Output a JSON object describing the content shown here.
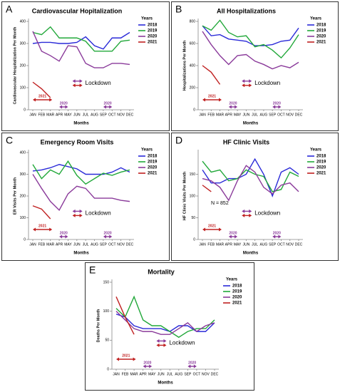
{
  "chart_data": [
    {
      "type": "line",
      "panel": "A",
      "title": "Cardiovascular Hopitalization",
      "y_label": "Cardiovascular Hospitalization Per Month",
      "x_label": "Months",
      "legend_title": "Years",
      "categories": [
        "JAN",
        "FEB",
        "MAR",
        "APR",
        "MAY",
        "JUN",
        "JUL",
        "AUG",
        "SEP",
        "OCT",
        "NOV",
        "DEC"
      ],
      "ylim": [
        0,
        400
      ],
      "yticks": [
        0,
        100,
        200,
        300,
        400
      ],
      "series": [
        {
          "name": "2018",
          "color": "#2a2ad8",
          "values": [
            300,
            305,
            305,
            300,
            300,
            305,
            330,
            290,
            275,
            325,
            325,
            350
          ]
        },
        {
          "name": "2019",
          "color": "#22a83a",
          "values": [
            350,
            340,
            375,
            325,
            325,
            325,
            310,
            265,
            265,
            265,
            310,
            315
          ]
        },
        {
          "name": "2020",
          "color": "#8a3a9a",
          "values": [
            355,
            265,
            245,
            220,
            290,
            285,
            210,
            190,
            190,
            210,
            210,
            205
          ]
        },
        {
          "name": "2021",
          "color": "#c02020",
          "values": [
            125,
            95,
            55,
            null,
            null,
            null,
            null,
            null,
            null,
            null,
            null,
            null
          ]
        }
      ],
      "annotations": [
        "Lockdown",
        "2021",
        "2020",
        "2020"
      ]
    },
    {
      "type": "line",
      "panel": "B",
      "title": "All Hospitalizations",
      "y_label": "Hospitalizations Per Month",
      "x_label": "Months",
      "legend_title": "Years",
      "categories": [
        "JAN",
        "FEB",
        "MAR",
        "APR",
        "MAY",
        "JUN",
        "JUL",
        "AUG",
        "SEP",
        "OCT",
        "NOV",
        "DEC"
      ],
      "ylim": [
        0,
        800
      ],
      "yticks": [
        0,
        200,
        400,
        600,
        800
      ],
      "series": [
        {
          "name": "2018",
          "color": "#2a2ad8",
          "values": [
            760,
            670,
            680,
            640,
            630,
            620,
            580,
            580,
            590,
            620,
            630,
            740
          ]
        },
        {
          "name": "2019",
          "color": "#22a83a",
          "values": [
            760,
            720,
            810,
            700,
            660,
            670,
            570,
            590,
            540,
            470,
            560,
            680
          ]
        },
        {
          "name": "2020",
          "color": "#8a3a9a",
          "values": [
            710,
            590,
            490,
            410,
            490,
            500,
            440,
            410,
            370,
            400,
            380,
            430
          ]
        },
        {
          "name": "2021",
          "color": "#c02020",
          "values": [
            400,
            340,
            230,
            null,
            null,
            null,
            null,
            null,
            null,
            null,
            null,
            null
          ]
        }
      ],
      "annotations": [
        "Lockdown",
        "2021",
        "2020",
        "2020"
      ]
    },
    {
      "type": "line",
      "panel": "C",
      "title": "Emergency Room Visits",
      "y_label": "ER Visits Per Month",
      "x_label": "Months",
      "legend_title": "Years",
      "categories": [
        "JAN",
        "FEB",
        "MAR",
        "APR",
        "MAY",
        "JUN",
        "JUL",
        "AUG",
        "SEP",
        "OCT",
        "NOV",
        "DEC"
      ],
      "ylim": [
        0,
        400
      ],
      "yticks": [
        0,
        100,
        200,
        300,
        400
      ],
      "series": [
        {
          "name": "2018",
          "color": "#2a2ad8",
          "values": [
            315,
            320,
            330,
            345,
            335,
            325,
            300,
            300,
            300,
            310,
            330,
            310
          ]
        },
        {
          "name": "2019",
          "color": "#22a83a",
          "values": [
            345,
            280,
            320,
            300,
            360,
            295,
            255,
            280,
            305,
            295,
            310,
            320
          ]
        },
        {
          "name": "2020",
          "color": "#8a3a9a",
          "values": [
            300,
            235,
            175,
            135,
            210,
            245,
            235,
            190,
            190,
            190,
            180,
            175
          ]
        },
        {
          "name": "2021",
          "color": "#c02020",
          "values": [
            155,
            140,
            95,
            null,
            null,
            null,
            null,
            null,
            null,
            null,
            null,
            null
          ]
        }
      ],
      "annotations": [
        "Lockdown",
        "2021",
        "2020",
        "2020"
      ]
    },
    {
      "type": "line",
      "panel": "D",
      "title": "HF Clinic Visits",
      "y_label": "HF Clinic Visits Per Month",
      "x_label": "Months",
      "legend_title": "Years",
      "categories": [
        "JAN",
        "FEB",
        "MAR",
        "APR",
        "MAY",
        "JUN",
        "JUL",
        "AUG",
        "SEP",
        "OCT",
        "NOV",
        "DEC"
      ],
      "ylim": [
        0,
        200
      ],
      "yticks": [
        0,
        50,
        100,
        150
      ],
      "series": [
        {
          "name": "2018",
          "color": "#2a2ad8",
          "values": [
            160,
            130,
            130,
            140,
            140,
            150,
            185,
            150,
            100,
            155,
            165,
            150
          ]
        },
        {
          "name": "2019",
          "color": "#22a83a",
          "values": [
            180,
            155,
            160,
            135,
            140,
            160,
            150,
            145,
            110,
            115,
            155,
            145
          ]
        },
        {
          "name": "2020",
          "color": "#8a3a9a",
          "values": [
            140,
            135,
            120,
            90,
            135,
            170,
            155,
            120,
            105,
            125,
            130,
            110
          ]
        },
        {
          "name": "2021",
          "color": "#c02020",
          "values": [
            125,
            110,
            null,
            null,
            null,
            null,
            null,
            null,
            null,
            null,
            null,
            null
          ]
        }
      ],
      "note": "N = 852",
      "annotations": [
        "Lockdown",
        "2021",
        "2020",
        "2020"
      ]
    },
    {
      "type": "line",
      "panel": "E",
      "title": "Mortality",
      "y_label": "Deaths Per Month",
      "x_label": "Months",
      "legend_title": "Years",
      "categories": [
        "JAN",
        "FEB",
        "MAR",
        "APR",
        "MAY",
        "JUN",
        "JUL",
        "AUG",
        "SEP",
        "OCT",
        "NOV",
        "DEC"
      ],
      "ylim": [
        0,
        150
      ],
      "yticks": [
        0,
        50,
        100,
        150
      ],
      "series": [
        {
          "name": "2018",
          "color": "#2a2ad8",
          "values": [
            95,
            90,
            75,
            70,
            70,
            70,
            65,
            75,
            75,
            65,
            65,
            80
          ]
        },
        {
          "name": "2019",
          "color": "#22a83a",
          "values": [
            105,
            90,
            125,
            85,
            75,
            75,
            65,
            55,
            65,
            70,
            70,
            85
          ]
        },
        {
          "name": "2020",
          "color": "#8a3a9a",
          "values": [
            100,
            85,
            70,
            65,
            65,
            60,
            60,
            70,
            80,
            65,
            75,
            80
          ]
        },
        {
          "name": "2021",
          "color": "#c02020",
          "values": [
            125,
            90,
            60,
            null,
            null,
            null,
            null,
            null,
            null,
            null,
            null,
            null
          ]
        }
      ],
      "annotations": [
        "Lockdown",
        "2021",
        "2020",
        "2020"
      ]
    }
  ]
}
